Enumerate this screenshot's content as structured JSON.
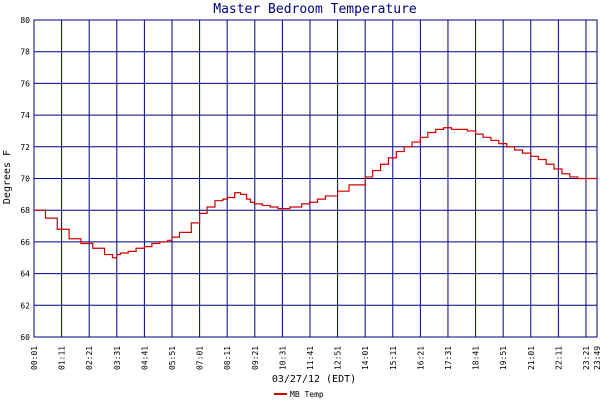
{
  "chart_data": {
    "type": "line",
    "title": "Master Bedroom Temperature",
    "xlabel": "03/27/12 (EDT)",
    "ylabel": "Degrees F",
    "ylim": [
      60,
      80
    ],
    "yticks": [
      60,
      62,
      64,
      66,
      68,
      70,
      72,
      74,
      76,
      78,
      80
    ],
    "xticks": [
      "00:01",
      "01:11",
      "02:21",
      "03:31",
      "04:41",
      "05:51",
      "07:01",
      "08:11",
      "09:21",
      "10:31",
      "11:41",
      "12:51",
      "14:01",
      "15:11",
      "16:21",
      "17:31",
      "18:41",
      "19:51",
      "21:01",
      "22:11",
      "23:21",
      "23:49"
    ],
    "xtick_minutes": [
      1,
      71,
      141,
      211,
      281,
      351,
      421,
      491,
      561,
      631,
      701,
      771,
      841,
      911,
      981,
      1051,
      1121,
      1191,
      1261,
      1331,
      1401,
      1429
    ],
    "xlim_minutes": [
      1,
      1429
    ],
    "grid": true,
    "legend": "bottom-left",
    "colors": {
      "grid": "#000080",
      "series": "#cc0000",
      "title": "#000080"
    },
    "series": [
      {
        "name": "MB Temp",
        "x_minutes": [
          1,
          30,
          60,
          90,
          120,
          150,
          180,
          200,
          211,
          220,
          240,
          260,
          281,
          300,
          320,
          340,
          351,
          370,
          400,
          421,
          440,
          460,
          480,
          491,
          510,
          525,
          540,
          550,
          560,
          580,
          600,
          620,
          631,
          650,
          680,
          700,
          720,
          740,
          771,
          800,
          841,
          860,
          880,
          900,
          920,
          940,
          960,
          981,
          1000,
          1020,
          1040,
          1060,
          1080,
          1100,
          1121,
          1140,
          1160,
          1180,
          1200,
          1220,
          1240,
          1261,
          1280,
          1300,
          1320,
          1340,
          1360,
          1380,
          1401,
          1420,
          1429
        ],
        "values": [
          68.0,
          67.5,
          66.8,
          66.2,
          65.9,
          65.6,
          65.2,
          65.0,
          65.2,
          65.3,
          65.4,
          65.6,
          65.7,
          65.9,
          66.0,
          66.1,
          66.3,
          66.6,
          67.2,
          67.8,
          68.2,
          68.6,
          68.7,
          68.8,
          69.1,
          69.0,
          68.7,
          68.5,
          68.4,
          68.3,
          68.2,
          68.1,
          68.1,
          68.2,
          68.4,
          68.5,
          68.7,
          68.9,
          69.2,
          69.6,
          70.1,
          70.5,
          70.9,
          71.3,
          71.7,
          72.0,
          72.3,
          72.6,
          72.9,
          73.1,
          73.2,
          73.1,
          73.1,
          73.0,
          72.8,
          72.6,
          72.4,
          72.2,
          72.0,
          71.8,
          71.6,
          71.4,
          71.2,
          70.9,
          70.6,
          70.3,
          70.1,
          70.0,
          70.0,
          70.0,
          70.0
        ]
      }
    ]
  }
}
